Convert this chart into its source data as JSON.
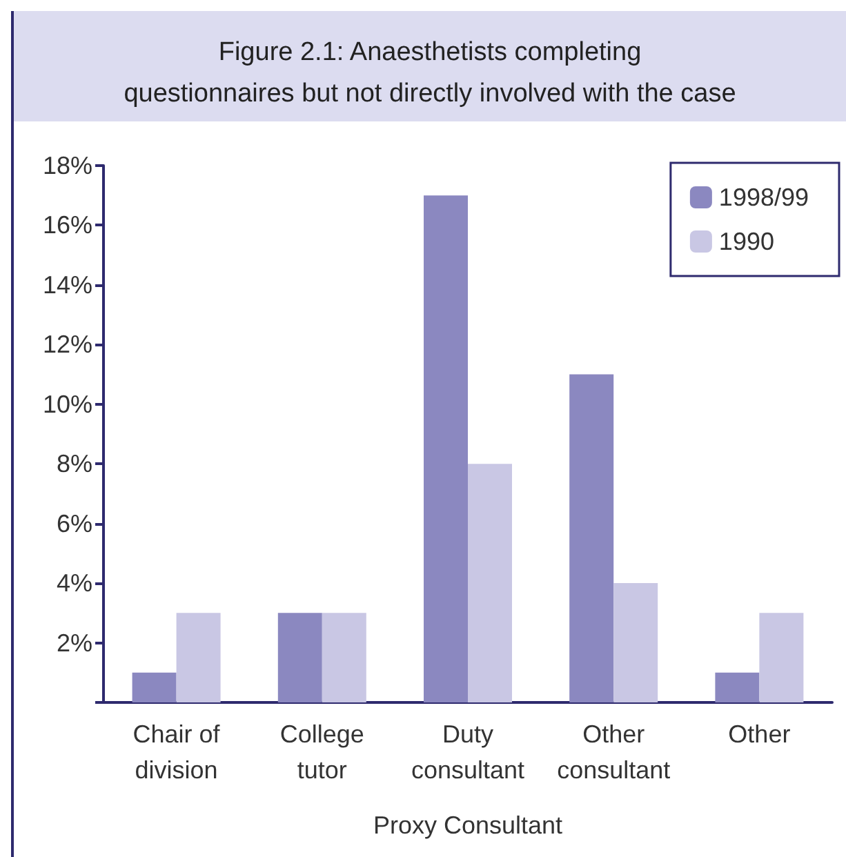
{
  "chart_data": {
    "type": "bar",
    "title": "Figure 2.1: Anaesthetists completing\nquestionnaires but not directly involved with the case",
    "xlabel": "Proxy Consultant",
    "categories": [
      "Chair of\ndivision",
      "College\ntutor",
      "Duty\nconsultant",
      "Other\nconsultant",
      "Other"
    ],
    "series": [
      {
        "name": "1998/99",
        "color": "#8b88c0",
        "values": [
          1,
          3,
          17,
          11,
          1
        ]
      },
      {
        "name": "1990",
        "color": "#c9c7e4",
        "values": [
          3,
          3,
          8,
          4,
          3
        ]
      }
    ],
    "ylim": [
      0,
      18
    ],
    "yticks": [
      {
        "value": 0,
        "label": null
      },
      {
        "value": 2,
        "label": "2%"
      },
      {
        "value": 4,
        "label": "4%"
      },
      {
        "value": 6,
        "label": "6%"
      },
      {
        "value": 8,
        "label": "8%"
      },
      {
        "value": 10,
        "label": "10%"
      },
      {
        "value": 12,
        "label": "12%"
      },
      {
        "value": 14,
        "label": "14%"
      },
      {
        "value": 16,
        "label": "16%"
      },
      {
        "value": 18,
        "label": "18%"
      }
    ],
    "grid": false,
    "legend": "top right"
  }
}
